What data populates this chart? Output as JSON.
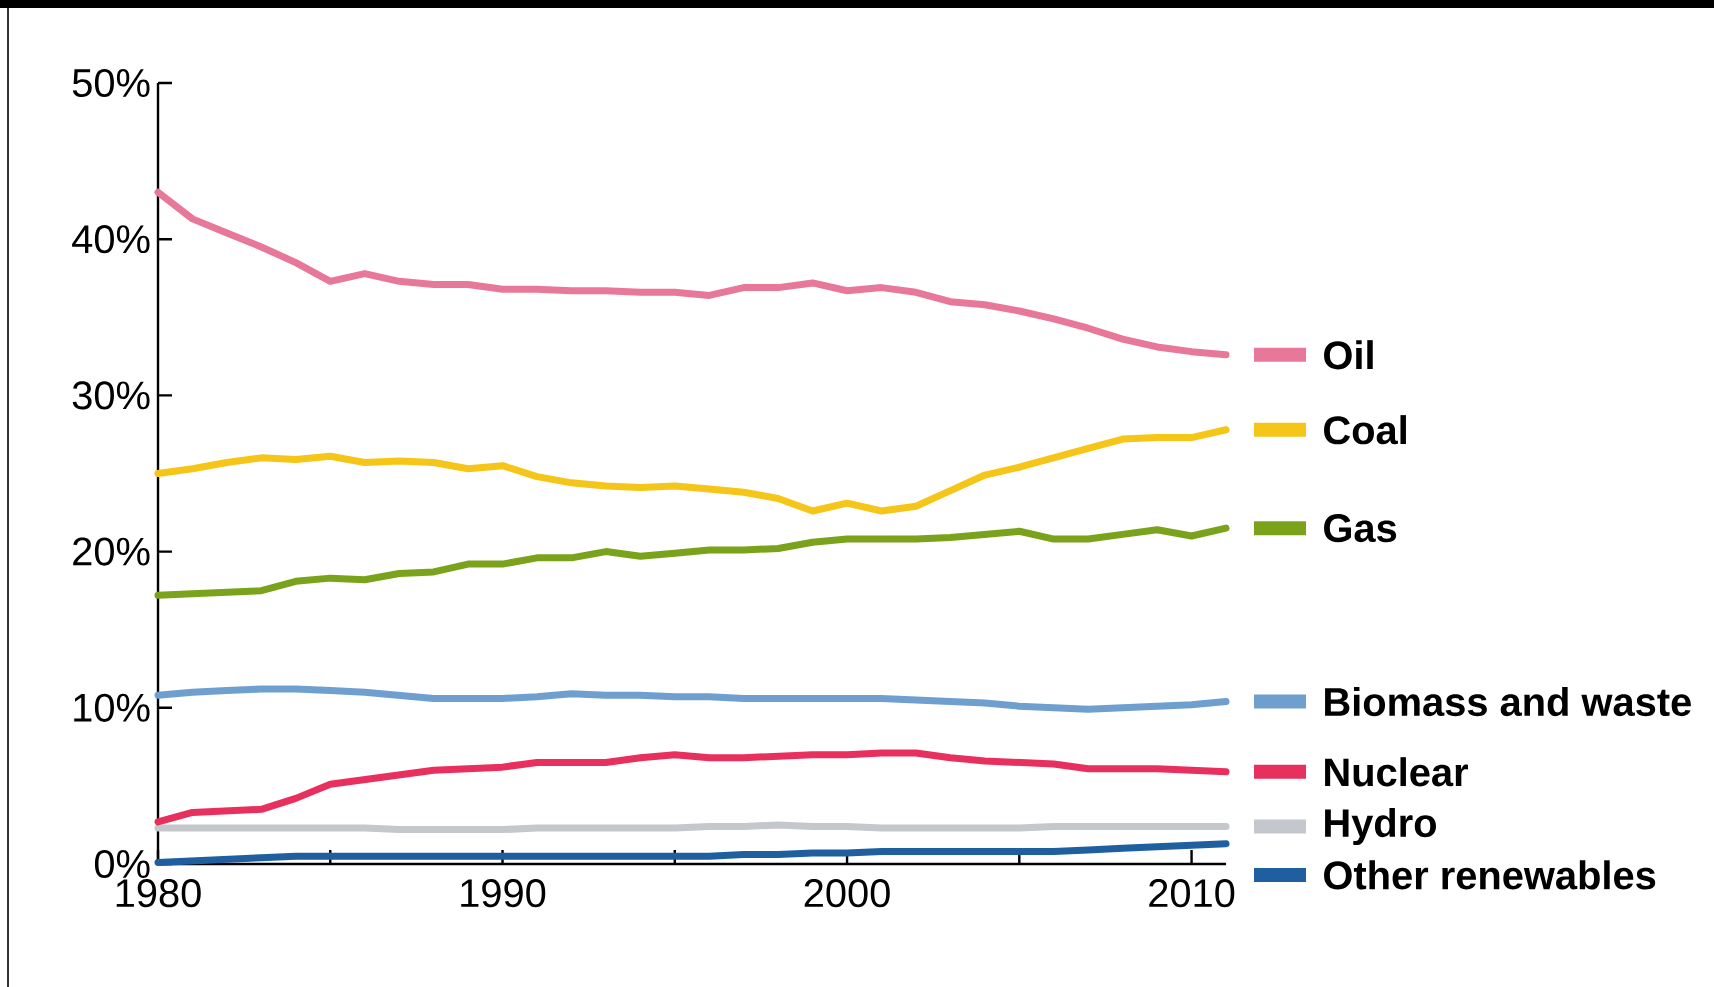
{
  "chart_data": {
    "type": "line",
    "x": [
      1980,
      1981,
      1982,
      1983,
      1984,
      1985,
      1986,
      1987,
      1988,
      1989,
      1990,
      1991,
      1992,
      1993,
      1994,
      1995,
      1996,
      1997,
      1998,
      1999,
      2000,
      2001,
      2002,
      2003,
      2004,
      2005,
      2006,
      2007,
      2008,
      2009,
      2010,
      2011
    ],
    "series": [
      {
        "name": "Oil",
        "color": "#e8789a",
        "values": [
          43.0,
          41.3,
          40.4,
          39.5,
          38.5,
          37.3,
          37.8,
          37.3,
          37.1,
          37.1,
          36.8,
          36.8,
          36.7,
          36.7,
          36.6,
          36.6,
          36.4,
          36.9,
          36.9,
          37.2,
          36.7,
          36.9,
          36.6,
          36.0,
          35.8,
          35.4,
          34.9,
          34.3,
          33.6,
          33.1,
          32.8,
          32.6
        ]
      },
      {
        "name": "Coal",
        "color": "#f5c518",
        "values": [
          25.0,
          25.3,
          25.7,
          26.0,
          25.9,
          26.1,
          25.7,
          25.8,
          25.7,
          25.3,
          25.5,
          24.8,
          24.4,
          24.2,
          24.1,
          24.2,
          24.0,
          23.8,
          23.4,
          22.6,
          23.1,
          22.6,
          22.9,
          23.9,
          24.9,
          25.4,
          26.0,
          26.6,
          27.2,
          27.3,
          27.3,
          27.8
        ]
      },
      {
        "name": "Gas",
        "color": "#7aa21a",
        "values": [
          17.2,
          17.3,
          17.4,
          17.5,
          18.1,
          18.3,
          18.2,
          18.6,
          18.7,
          19.2,
          19.2,
          19.6,
          19.6,
          20.0,
          19.7,
          19.9,
          20.1,
          20.1,
          20.2,
          20.6,
          20.8,
          20.8,
          20.8,
          20.9,
          21.1,
          21.3,
          20.8,
          20.8,
          21.1,
          21.4,
          21.0,
          21.5
        ]
      },
      {
        "name": "Biomass and waste",
        "color": "#6f9fcf",
        "values": [
          10.8,
          11.0,
          11.1,
          11.2,
          11.2,
          11.1,
          11.0,
          10.8,
          10.6,
          10.6,
          10.6,
          10.7,
          10.9,
          10.8,
          10.8,
          10.7,
          10.7,
          10.6,
          10.6,
          10.6,
          10.6,
          10.6,
          10.5,
          10.4,
          10.3,
          10.1,
          10.0,
          9.9,
          10.0,
          10.1,
          10.2,
          10.4
        ]
      },
      {
        "name": "Nuclear",
        "color": "#e8305e",
        "values": [
          2.7,
          3.3,
          3.4,
          3.5,
          4.2,
          5.1,
          5.4,
          5.7,
          6.0,
          6.1,
          6.2,
          6.5,
          6.5,
          6.5,
          6.8,
          7.0,
          6.8,
          6.8,
          6.9,
          7.0,
          7.0,
          7.1,
          7.1,
          6.8,
          6.6,
          6.5,
          6.4,
          6.1,
          6.1,
          6.1,
          6.0,
          5.9
        ]
      },
      {
        "name": "Hydro",
        "color": "#c4c7cc",
        "values": [
          2.3,
          2.3,
          2.3,
          2.3,
          2.3,
          2.3,
          2.3,
          2.2,
          2.2,
          2.2,
          2.2,
          2.3,
          2.3,
          2.3,
          2.3,
          2.3,
          2.4,
          2.4,
          2.5,
          2.4,
          2.4,
          2.3,
          2.3,
          2.3,
          2.3,
          2.3,
          2.4,
          2.4,
          2.4,
          2.4,
          2.4,
          2.4
        ]
      },
      {
        "name": "Other renewables",
        "color": "#1f5fa0",
        "values": [
          0.1,
          0.2,
          0.3,
          0.4,
          0.5,
          0.5,
          0.5,
          0.5,
          0.5,
          0.5,
          0.5,
          0.5,
          0.5,
          0.5,
          0.5,
          0.5,
          0.5,
          0.6,
          0.6,
          0.7,
          0.7,
          0.8,
          0.8,
          0.8,
          0.8,
          0.8,
          0.8,
          0.9,
          1.0,
          1.1,
          1.2,
          1.3
        ]
      }
    ],
    "xlim": [
      1980,
      2011
    ],
    "xticks": [
      1980,
      {
        "value": 1985,
        "label": null
      },
      1990,
      {
        "value": 1995,
        "label": null
      },
      2000,
      {
        "value": 2005,
        "label": null
      },
      2010
    ],
    "ylim": [
      0,
      50
    ],
    "yticks": [
      {
        "value": 0,
        "label": "0%"
      },
      {
        "value": 10,
        "label": "10%"
      },
      {
        "value": 20,
        "label": "20%"
      },
      {
        "value": 30,
        "label": "30%"
      },
      {
        "value": 40,
        "label": "40%"
      },
      {
        "value": 50,
        "label": "50%"
      }
    ],
    "grid": false,
    "legend": "right"
  }
}
